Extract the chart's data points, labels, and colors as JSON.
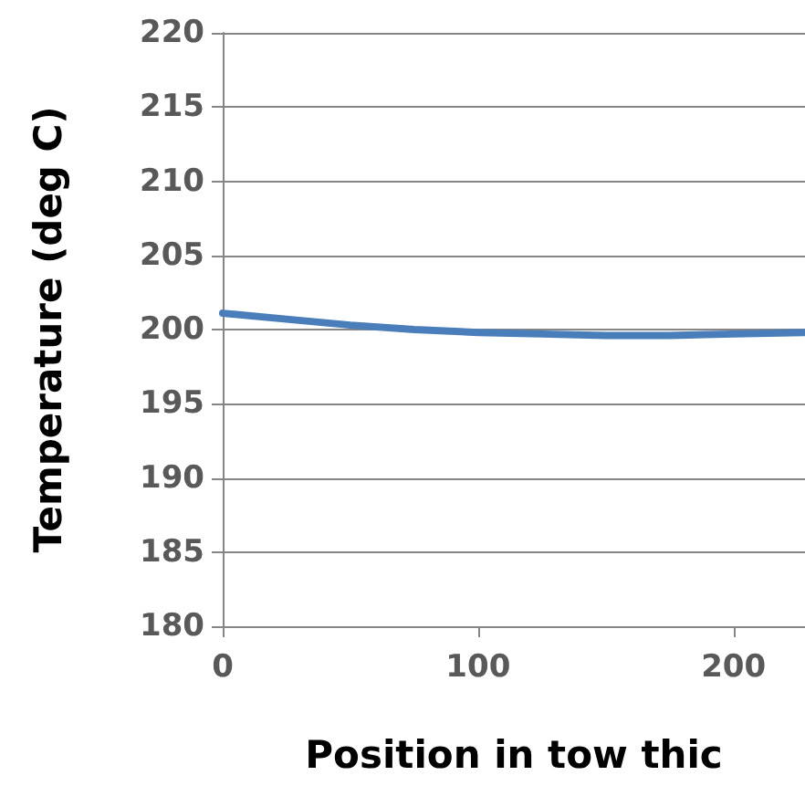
{
  "chart_data": {
    "type": "line",
    "xlabel": "Position in tow thic",
    "ylabel": "Temperature (deg C)",
    "x": [
      0,
      25,
      50,
      75,
      100,
      125,
      150,
      175,
      200,
      228
    ],
    "series": [
      {
        "color": "#4a7ebb",
        "values": [
          201.1,
          200.7,
          200.3,
          200.0,
          199.8,
          199.7,
          199.6,
          199.6,
          199.7,
          199.8
        ]
      }
    ],
    "xlim": [
      0,
      228
    ],
    "xticks": [
      0,
      100,
      200
    ],
    "ylim": [
      180,
      220
    ],
    "yticks": [
      180,
      185,
      190,
      195,
      200,
      205,
      210,
      215,
      220
    ],
    "grid": "y",
    "marker": "none",
    "line_style": "solid"
  }
}
